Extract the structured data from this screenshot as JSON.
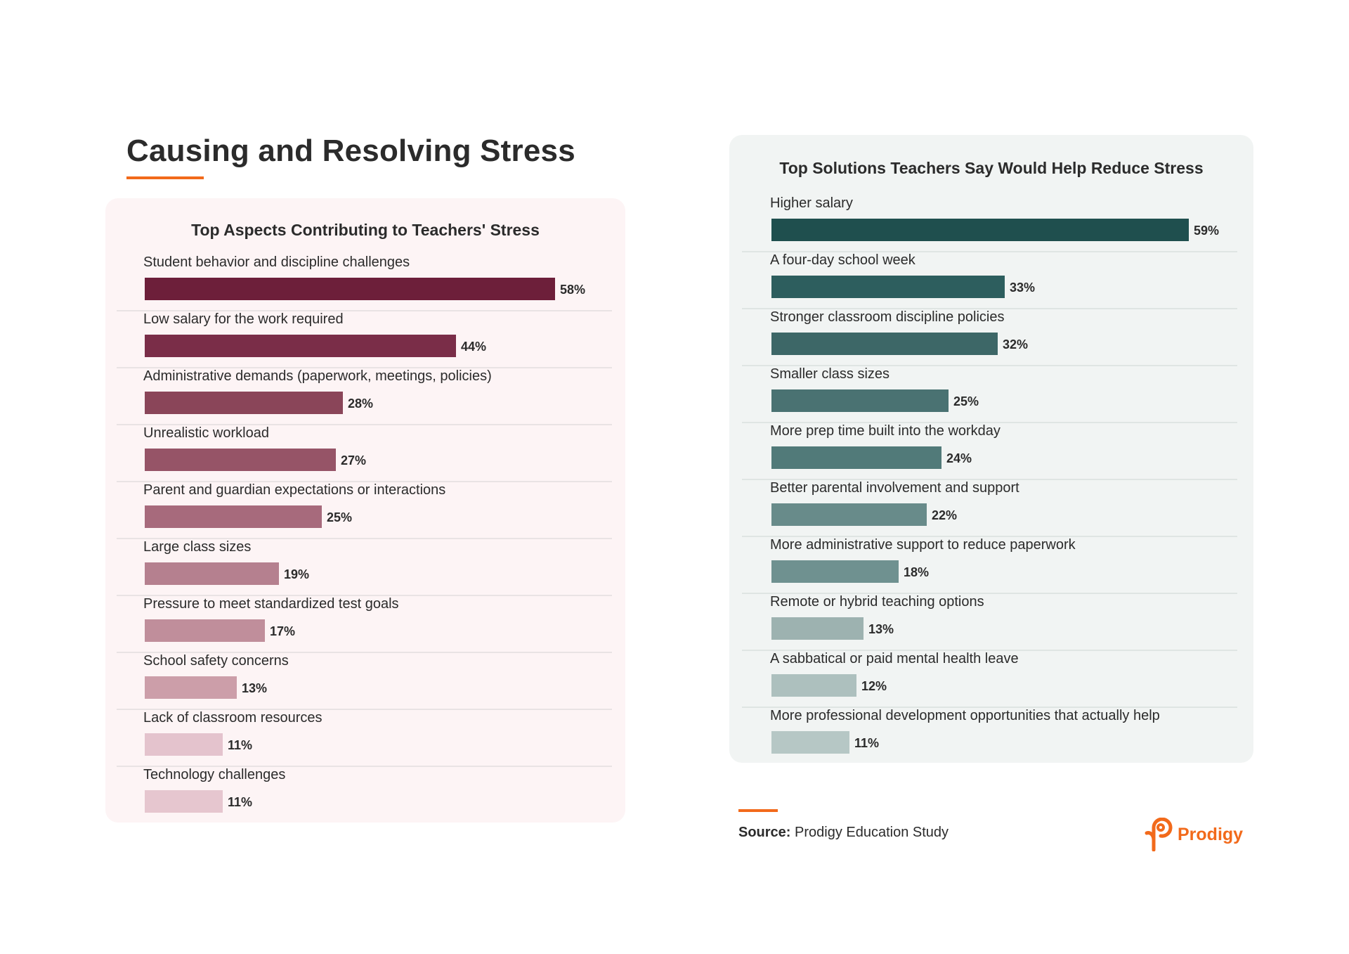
{
  "page": {
    "title": "Causing and Resolving Stress",
    "accent_color": "#f26a1b"
  },
  "chart_data": [
    {
      "type": "bar",
      "orientation": "horizontal",
      "title": "Top Aspects Contributing to Teachers' Stress",
      "value_suffix": "%",
      "xlim": [
        0,
        100
      ],
      "grid": false,
      "categories": [
        "Student behavior and discipline challenges",
        "Low salary for the work required",
        "Administrative demands (paperwork, meetings, policies)",
        "Unrealistic workload",
        "Parent and guardian expectations or interactions",
        "Large class sizes",
        "Pressure to meet standardized test goals",
        "School safety concerns",
        "Lack of classroom resources",
        "Technology challenges"
      ],
      "values": [
        58,
        44,
        28,
        27,
        25,
        19,
        17,
        13,
        11,
        11
      ],
      "value_labels": [
        "58%",
        "44%",
        "28%",
        "27%",
        "25%",
        "19%",
        "17%",
        "13%",
        "11%",
        "11%"
      ],
      "colors": [
        "#6d1f3a",
        "#7a2d48",
        "#8a4559",
        "#965467",
        "#a76a7c",
        "#b5808f",
        "#c08e9b",
        "#cc9ea9",
        "#e4c3cd",
        "#e6c6cf"
      ],
      "panel_background": "#fdf4f5"
    },
    {
      "type": "bar",
      "orientation": "horizontal",
      "title": "Top Solutions Teachers Say Would Help Reduce Stress",
      "value_suffix": "%",
      "xlim": [
        0,
        100
      ],
      "grid": false,
      "categories": [
        "Higher salary",
        "A four-day school week",
        "Stronger classroom discipline policies",
        "Smaller class sizes",
        "More prep time built into the workday",
        "Better parental involvement and support",
        "More administrative support to reduce paperwork",
        "Remote or hybrid teaching options",
        "A sabbatical or paid mental health leave",
        "More professional development opportunities that actually help"
      ],
      "values": [
        59,
        33,
        32,
        25,
        24,
        22,
        18,
        13,
        12,
        11
      ],
      "value_labels": [
        "59%",
        "33%",
        "32%",
        "25%",
        "24%",
        "22%",
        "18%",
        "13%",
        "12%",
        "11%"
      ],
      "colors": [
        "#1f4f4e",
        "#2d5e5e",
        "#3d6767",
        "#4a7272",
        "#517a79",
        "#688b8a",
        "#6f9190",
        "#9db2b0",
        "#adc0be",
        "#b6c7c5"
      ],
      "panel_background": "#f1f4f3"
    }
  ],
  "source": {
    "label": "Source:",
    "text": "Prodigy Education Study"
  },
  "logo": {
    "text": "Prodigy",
    "icon": "prodigy-logo-icon",
    "color": "#f26a1b"
  }
}
